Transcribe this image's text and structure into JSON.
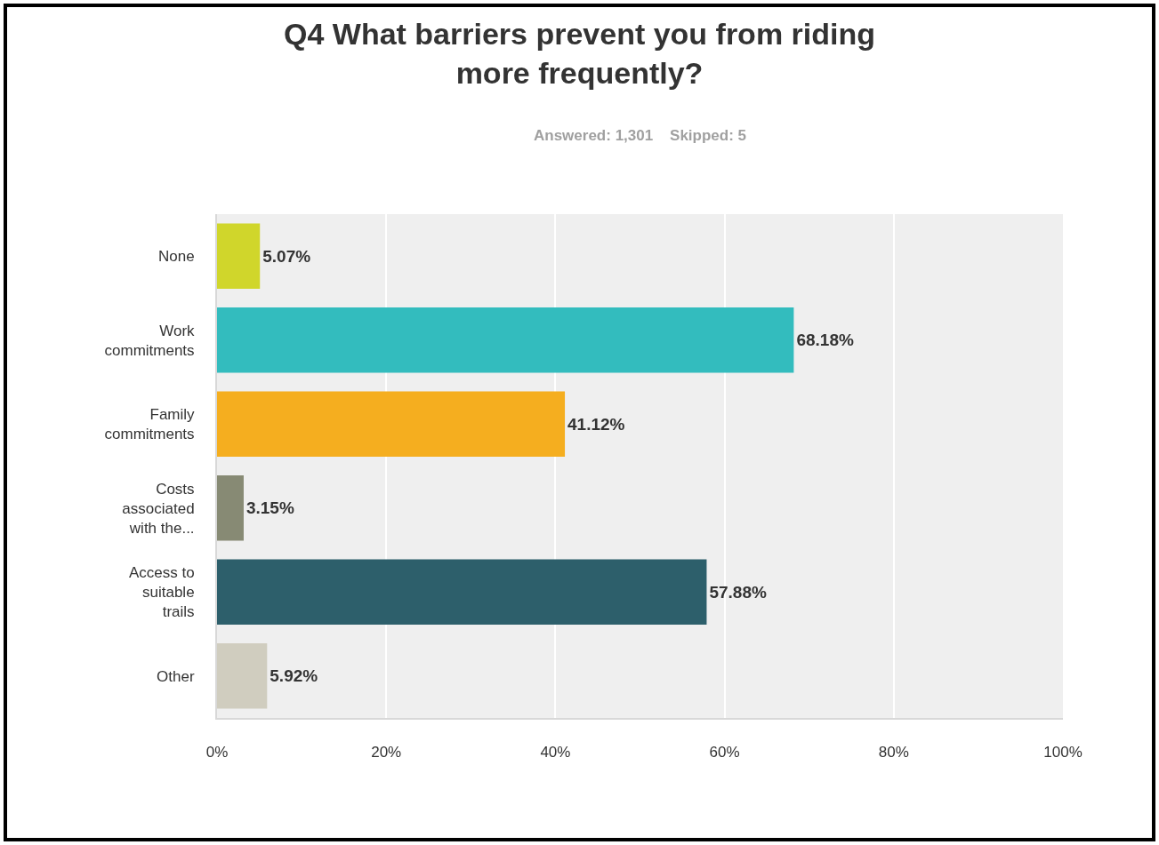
{
  "chart_data": {
    "type": "bar",
    "orientation": "horizontal",
    "title": "Q4 What barriers prevent you from riding more frequently?",
    "subtitle": "Answered: 1,301    Skipped: 5",
    "categories": [
      "None",
      "Work commitments",
      "Family commitments",
      "Costs associated with the...",
      "Access to suitable trails",
      "Other"
    ],
    "values": [
      5.07,
      68.18,
      41.12,
      3.15,
      57.88,
      5.92
    ],
    "value_labels": [
      "5.07%",
      "68.18%",
      "41.12%",
      "3.15%",
      "57.88%",
      "5.92%"
    ],
    "colors": [
      "#d0d62b",
      "#33bcbe",
      "#f5ae1f",
      "#878a74",
      "#2d5f6b",
      "#d0cdbf"
    ],
    "xlim": [
      0,
      100
    ],
    "xticks": [
      {
        "value": 0,
        "label": "0%"
      },
      {
        "value": 20,
        "label": "20%"
      },
      {
        "value": 40,
        "label": "40%"
      },
      {
        "value": 60,
        "label": "60%"
      },
      {
        "value": 80,
        "label": "80%"
      },
      {
        "value": 100,
        "label": "100%"
      }
    ],
    "grid": "x"
  }
}
